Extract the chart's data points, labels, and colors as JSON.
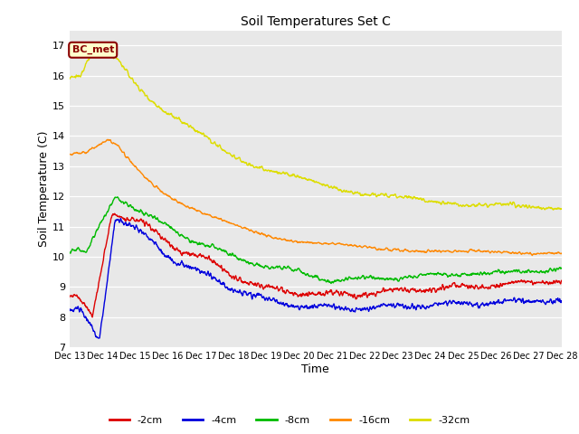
{
  "title": "Soil Temperatures Set C",
  "xlabel": "Time",
  "ylabel": "Soil Temperature (C)",
  "ylim": [
    7.0,
    17.5
  ],
  "yticks": [
    7.0,
    8.0,
    9.0,
    10.0,
    11.0,
    12.0,
    13.0,
    14.0,
    15.0,
    16.0,
    17.0
  ],
  "bg_color": "#e8e8e8",
  "fig_color": "#ffffff",
  "annotation_text": "BC_met",
  "annotation_bg": "#ffffcc",
  "annotation_border": "#8b0000",
  "series": {
    "-2cm": {
      "color": "#dd0000"
    },
    "-4cm": {
      "color": "#0000dd"
    },
    "-8cm": {
      "color": "#00bb00"
    },
    "-16cm": {
      "color": "#ff8800"
    },
    "-32cm": {
      "color": "#dddd00"
    }
  },
  "xtick_labels": [
    "Dec 13",
    "Dec 14",
    "Dec 15",
    "Dec 16",
    "Dec 17",
    "Dec 18",
    "Dec 19",
    "Dec 20",
    "Dec 21",
    "Dec 22",
    "Dec 23",
    "Dec 24",
    "Dec 25",
    "Dec 26",
    "Dec 27",
    "Dec 28"
  ],
  "n_points": 1440
}
